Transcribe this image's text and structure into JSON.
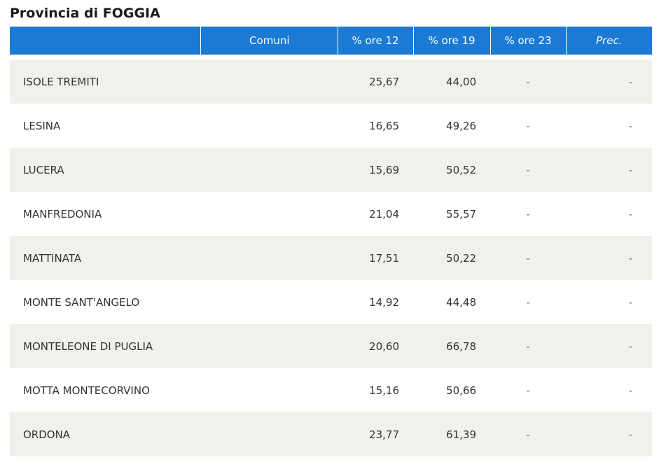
{
  "page": {
    "title": "Provincia di FOGGIA"
  },
  "table": {
    "headers": {
      "name": "",
      "comuni": "Comuni",
      "ore12": "% ore 12",
      "ore19": "% ore 19",
      "ore23": "% ore 23",
      "prec": "Prec."
    },
    "rows": [
      {
        "name": "ISOLE TREMITI",
        "ore12": "25,67",
        "ore19": "44,00",
        "ore23": "-",
        "prec": "-"
      },
      {
        "name": "LESINA",
        "ore12": "16,65",
        "ore19": "49,26",
        "ore23": "-",
        "prec": "-"
      },
      {
        "name": "LUCERA",
        "ore12": "15,69",
        "ore19": "50,52",
        "ore23": "-",
        "prec": "-"
      },
      {
        "name": "MANFREDONIA",
        "ore12": "21,04",
        "ore19": "55,57",
        "ore23": "-",
        "prec": "-"
      },
      {
        "name": "MATTINATA",
        "ore12": "17,51",
        "ore19": "50,22",
        "ore23": "-",
        "prec": "-"
      },
      {
        "name": "MONTE SANT'ANGELO",
        "ore12": "14,92",
        "ore19": "44,48",
        "ore23": "-",
        "prec": "-"
      },
      {
        "name": "MONTELEONE DI PUGLIA",
        "ore12": "20,60",
        "ore19": "66,78",
        "ore23": "-",
        "prec": "-"
      },
      {
        "name": "MOTTA MONTECORVINO",
        "ore12": "15,16",
        "ore19": "50,66",
        "ore23": "-",
        "prec": "-"
      },
      {
        "name": "ORDONA",
        "ore12": "23,77",
        "ore19": "61,39",
        "ore23": "-",
        "prec": "-"
      }
    ]
  },
  "colors": {
    "header_bg": "#1a7ad4",
    "row_alt_bg": "#f1f1ec"
  }
}
